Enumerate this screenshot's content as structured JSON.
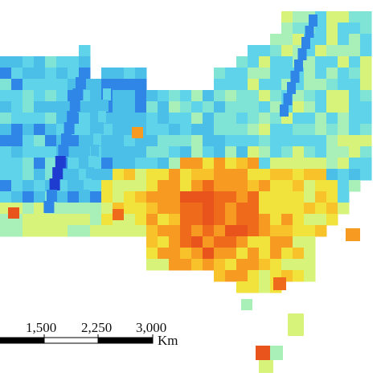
{
  "map": {
    "colors": {
      "dark_blue": "#1e3ccf",
      "blue": "#2f86e6",
      "light_blue": "#4bbfe8",
      "cyan": "#5ed3ea",
      "aqua": "#7fe4d6",
      "mint": "#a8f0b8",
      "yellow_green": "#d8f37a",
      "yellow": "#f2e23c",
      "gold": "#f7c22a",
      "orange": "#f79a22",
      "deep_orange": "#f06a1c",
      "red_orange": "#e9541c"
    }
  },
  "scale_bar": {
    "labels": [
      "1,500",
      "2,250",
      "3,000"
    ],
    "unit": "Km"
  }
}
